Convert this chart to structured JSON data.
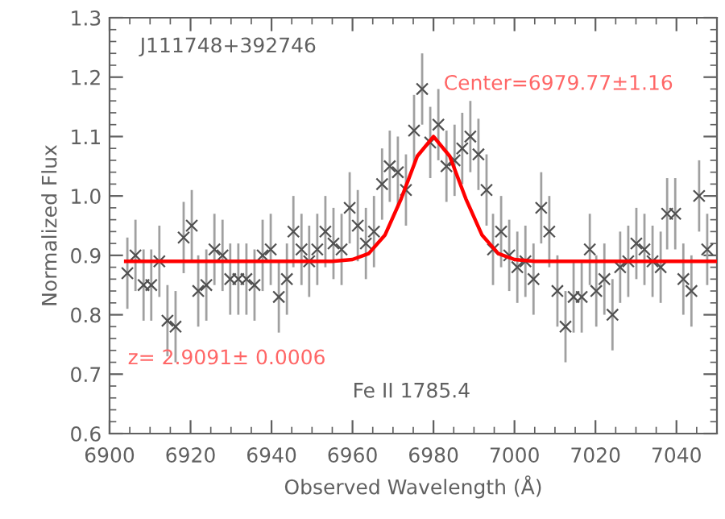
{
  "chart_data": {
    "type": "scatter",
    "xlabel": "Observed Wavelength (Å)",
    "ylabel": "Normalized Flux",
    "annotations": [
      "J111748+392746",
      "Center=6979.77±1.16",
      "z= 2.9091± 0.0006",
      "Fe II 1785.4"
    ],
    "xlim": [
      6900,
      7050
    ],
    "xticks": [
      6900,
      6920,
      6940,
      6960,
      6980,
      7000,
      7020,
      7040
    ],
    "ylim": [
      0.6,
      1.3
    ],
    "yticks": [
      0.6,
      0.7,
      0.8,
      0.9,
      {
        "value": 1.0,
        "label": "1.0"
      },
      1.1,
      1.2,
      1.3
    ],
    "grid": false,
    "legend": false,
    "series": [
      {
        "color": "#505050",
        "marker": "cross",
        "x": [
          6904.4,
          6906.4,
          6908.4,
          6910.3,
          6912.3,
          6914.3,
          6916.3,
          6918.3,
          6920.3,
          6921.9,
          6923.9,
          6925.9,
          6927.9,
          6929.8,
          6931.8,
          6933.8,
          6935.8,
          6937.8,
          6939.8,
          6941.8,
          6943.8,
          6945.4,
          6947.4,
          6949.3,
          6951.3,
          6953.3,
          6955.3,
          6957.3,
          6959.3,
          6961.3,
          6963.3,
          6965.3,
          6967.3,
          6969.2,
          6971.2,
          6973.2,
          6975.2,
          6977.2,
          6979.2,
          6981.2,
          6983.2,
          6985.2,
          6987.1,
          6989.1,
          6991.1,
          6993.1,
          6994.7,
          6996.7,
          6998.7,
          7000.7,
          7002.7,
          7004.7,
          7006.6,
          7008.6,
          7010.6,
          7012.6,
          7014.6,
          7016.6,
          7018.6,
          7020.2,
          7022.2,
          7024.2,
          7026.1,
          7028.1,
          7030.1,
          7032.1,
          7034.1,
          7036.1,
          7037.7,
          7039.7,
          7041.7,
          7043.7,
          7045.6,
          7047.6
        ],
        "values": [
          0.87,
          0.9,
          0.85,
          0.85,
          0.89,
          0.79,
          0.78,
          0.93,
          0.95,
          0.84,
          0.85,
          0.91,
          0.9,
          0.86,
          0.86,
          0.86,
          0.85,
          0.9,
          0.91,
          0.83,
          0.86,
          0.94,
          0.91,
          0.89,
          0.91,
          0.94,
          0.92,
          0.91,
          0.98,
          0.95,
          0.92,
          0.94,
          1.02,
          1.05,
          1.04,
          1.01,
          1.11,
          1.18,
          1.09,
          1.12,
          1.05,
          1.06,
          1.08,
          1.1,
          1.07,
          1.01,
          0.91,
          0.94,
          0.9,
          0.88,
          0.89,
          0.86,
          0.98,
          0.94,
          0.84,
          0.78,
          0.83,
          0.83,
          0.91,
          0.84,
          0.86,
          0.8,
          0.88,
          0.89,
          0.92,
          0.91,
          0.89,
          0.88,
          0.97,
          0.97,
          0.86,
          0.84,
          1.0,
          0.91
        ],
        "errors": [
          0.06,
          0.06,
          0.06,
          0.06,
          0.06,
          0.06,
          0.06,
          0.06,
          0.06,
          0.06,
          0.06,
          0.06,
          0.06,
          0.06,
          0.06,
          0.06,
          0.06,
          0.06,
          0.06,
          0.06,
          0.06,
          0.06,
          0.06,
          0.06,
          0.06,
          0.06,
          0.06,
          0.06,
          0.06,
          0.06,
          0.06,
          0.06,
          0.06,
          0.06,
          0.06,
          0.06,
          0.06,
          0.06,
          0.06,
          0.06,
          0.06,
          0.06,
          0.06,
          0.06,
          0.06,
          0.06,
          0.06,
          0.06,
          0.06,
          0.06,
          0.06,
          0.06,
          0.06,
          0.06,
          0.06,
          0.06,
          0.06,
          0.06,
          0.06,
          0.06,
          0.06,
          0.06,
          0.06,
          0.06,
          0.06,
          0.06,
          0.06,
          0.06,
          0.06,
          0.06,
          0.06,
          0.06,
          0.06,
          0.06
        ]
      },
      {
        "type": "line",
        "color": "#ff0000",
        "marker": "none",
        "line_style": "solid",
        "x": [
          6904,
          6950,
          6955,
          6960,
          6964,
          6968,
          6972,
          6976,
          6980,
          6984,
          6988,
          6992,
          6996,
          7000,
          7005,
          7050
        ],
        "values": [
          0.89,
          0.89,
          0.89,
          0.893,
          0.903,
          0.934,
          0.995,
          1.067,
          1.1,
          1.067,
          0.995,
          0.934,
          0.903,
          0.893,
          0.89,
          0.89
        ]
      }
    ]
  }
}
